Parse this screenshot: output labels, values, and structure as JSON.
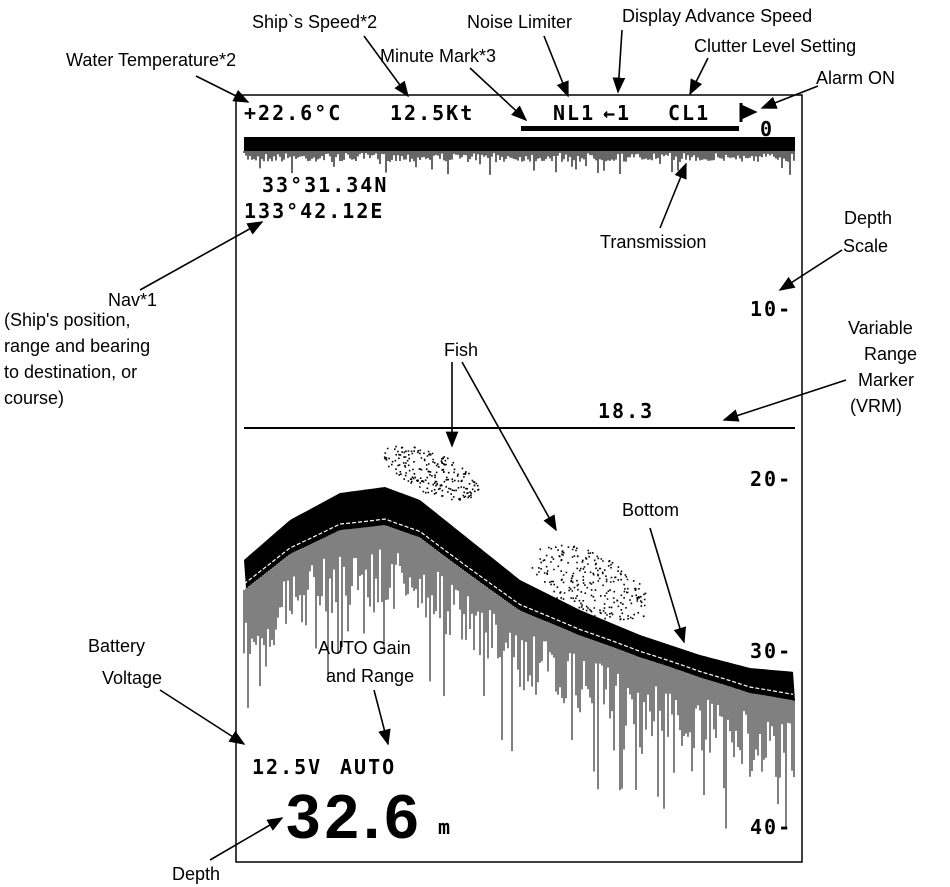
{
  "screen": {
    "temperature": "+22.6°C",
    "speed": "12.5Kt",
    "noise_limiter": "NL1",
    "advance_speed": "←1",
    "clutter": "CL1",
    "scale_top": "0",
    "latitude": "33°31.34N",
    "longitude": "133°42.12E",
    "scale_labels": [
      "10-",
      "20-",
      "30-",
      "40-"
    ],
    "vrm": "18.3",
    "voltage": "12.5V",
    "mode": "AUTO",
    "depth": "32.6",
    "depth_unit": "m"
  },
  "annotations": {
    "water_temperature": [
      "Water Temperature*2"
    ],
    "ships_speed": [
      "Ship`s Speed*2"
    ],
    "noise_limiter": [
      "Noise Limiter"
    ],
    "display_advance_speed": [
      "Display Advance Speed"
    ],
    "minute_mark": [
      "Minute Mark*3"
    ],
    "clutter_level": [
      "Clutter Level Setting"
    ],
    "alarm_on": [
      "Alarm ON"
    ],
    "transmission": [
      "Transmission"
    ],
    "depth_scale": [
      "Depth",
      "Scale"
    ],
    "nav": [
      "Nav*1",
      "(Ship's position,",
      "range and bearing",
      "to destination, or",
      "course)"
    ],
    "fish": [
      "Fish"
    ],
    "vrm": [
      "Variable",
      "Range",
      "Marker",
      "(VRM)"
    ],
    "bottom": [
      "Bottom"
    ],
    "battery_voltage": [
      "Battery",
      "Voltage"
    ],
    "auto_gain": [
      "AUTO Gain",
      "and Range"
    ],
    "depth": [
      "Depth"
    ]
  }
}
